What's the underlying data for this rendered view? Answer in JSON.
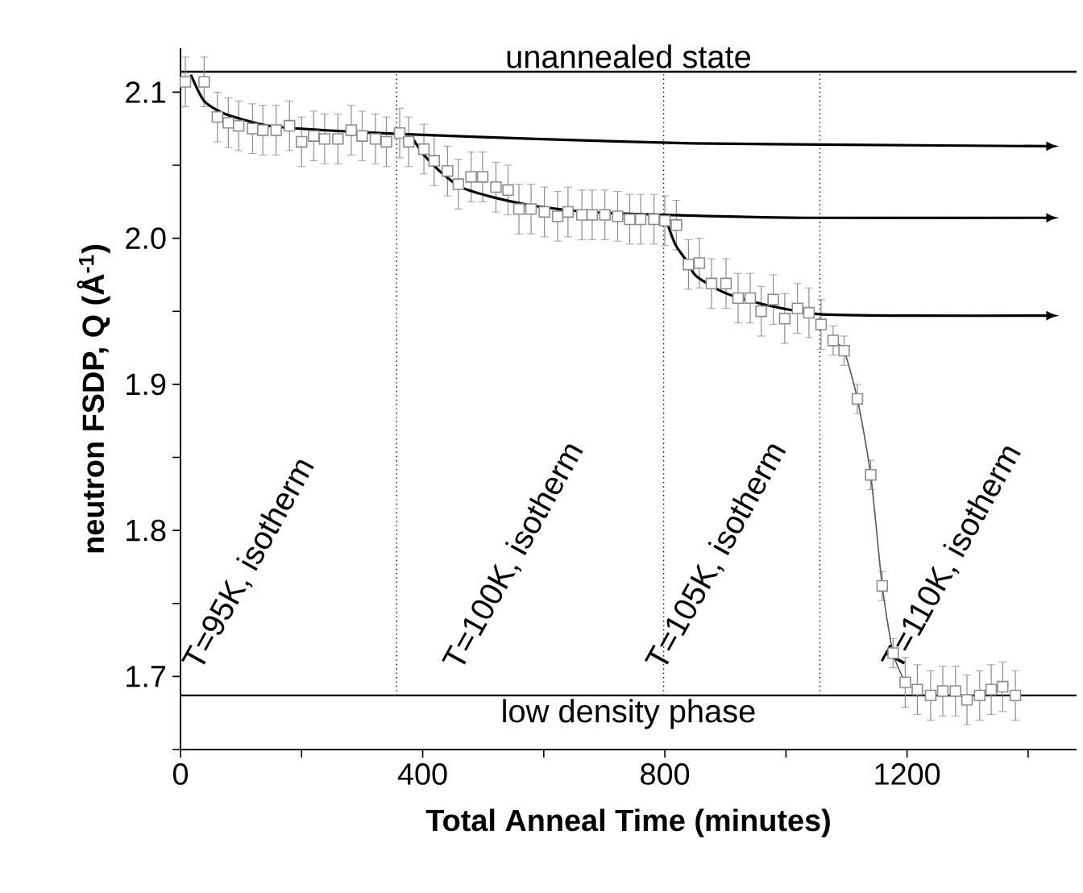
{
  "chart_data": {
    "type": "scatter",
    "xlabel": "Total Anneal Time (minutes)",
    "ylabel": "neutron FSDP, Q (Å$^{-1}$)",
    "xlim": [
      0,
      1480
    ],
    "ylim": [
      1.65,
      2.13
    ],
    "xticks": [
      0,
      {
        "value": 200,
        "label": null
      },
      400,
      {
        "value": 600,
        "label": null
      },
      800,
      {
        "value": 1000,
        "label": null
      },
      1200,
      {
        "value": 1400,
        "label": null
      }
    ],
    "yticks": [
      {
        "value": 1.65,
        "label": null
      },
      1.7,
      {
        "value": 1.75,
        "label": null
      },
      1.8,
      {
        "value": 1.85,
        "label": null
      },
      1.9,
      {
        "value": 1.95,
        "label": null
      },
      {
        "value": 2,
        "label": "2.0"
      },
      {
        "value": 2.05,
        "label": null
      },
      2.1
    ],
    "series": [
      {
        "marker": "square",
        "color": "#8c8c8c",
        "x": [
          8,
          39,
          61,
          79,
          96,
          119,
          136,
          158,
          180,
          200,
          220,
          238,
          260,
          282,
          300,
          322,
          340,
          362,
          377,
          402,
          419,
          441,
          459,
          480,
          499,
          521,
          541,
          559,
          579,
          601,
          623,
          640,
          663,
          680,
          701,
          722,
          742,
          760,
          782,
          800,
          819,
          839,
          857,
          877,
          901,
          921,
          941,
          959,
          979,
          998,
          1019,
          1038,
          1058,
          1078,
          1096,
          1118,
          1140,
          1159,
          1177,
          1197,
          1217,
          1239,
          1259,
          1280,
          1299,
          1320,
          1339,
          1358,
          1379
        ],
        "values": [
          2.107,
          2.107,
          2.083,
          2.079,
          2.077,
          2.075,
          2.074,
          2.074,
          2.077,
          2.066,
          2.07,
          2.068,
          2.068,
          2.074,
          2.07,
          2.068,
          2.066,
          2.072,
          2.066,
          2.061,
          2.053,
          2.046,
          2.037,
          2.042,
          2.042,
          2.035,
          2.033,
          2.02,
          2.02,
          2.018,
          2.015,
          2.018,
          2.016,
          2.016,
          2.016,
          2.015,
          2.013,
          2.013,
          2.013,
          2.012,
          2.009,
          1.982,
          1.983,
          1.969,
          1.969,
          1.959,
          1.959,
          1.95,
          1.958,
          1.945,
          1.952,
          1.949,
          1.941,
          1.93,
          1.923,
          1.89,
          1.838,
          1.762,
          1.716,
          1.696,
          1.691,
          1.687,
          1.69,
          1.69,
          1.684,
          1.687,
          1.691,
          1.693,
          1.687
        ],
        "errors": [
          0.017,
          0.017,
          0.017,
          0.017,
          0.017,
          0.017,
          0.017,
          0.017,
          0.017,
          0.017,
          0.017,
          0.017,
          0.017,
          0.017,
          0.017,
          0.017,
          0.017,
          0.017,
          0.017,
          0.017,
          0.017,
          0.017,
          0.017,
          0.017,
          0.017,
          0.017,
          0.017,
          0.017,
          0.017,
          0.017,
          0.017,
          0.017,
          0.017,
          0.017,
          0.017,
          0.017,
          0.017,
          0.017,
          0.017,
          0.017,
          0.017,
          0.017,
          0.017,
          0.017,
          0.017,
          0.017,
          0.017,
          0.017,
          0.017,
          0.017,
          0.017,
          0.017,
          0.017,
          0.01,
          0.01,
          0.01,
          0.01,
          0.01,
          0.01,
          0.017,
          0.017,
          0.017,
          0.017,
          0.017,
          0.017,
          0.017,
          0.017,
          0.017,
          0.017
        ]
      },
      {
        "type": "line",
        "marker": "none",
        "color": "#555555",
        "x": [
          1078,
          1096,
          1118,
          1140,
          1159,
          1177,
          1197
        ],
        "values": [
          1.93,
          1.923,
          1.89,
          1.838,
          1.762,
          1.716,
          1.696
        ]
      },
      {
        "type": "line",
        "marker": "none",
        "color": "#000000",
        "x": [
          17,
          39,
          74,
          145,
          234,
          384,
          587,
          844,
          1100,
          1430
        ],
        "values": [
          2.112,
          2.094,
          2.085,
          2.077,
          2.074,
          2.071,
          2.068,
          2.065,
          2.064,
          2.063
        ]
      },
      {
        "type": "line",
        "marker": "none",
        "color": "#000000",
        "x": [
          384,
          402,
          428,
          463,
          517,
          587,
          676,
          800,
          1029,
          1430
        ],
        "values": [
          2.068,
          2.057,
          2.046,
          2.035,
          2.028,
          2.022,
          2.018,
          2.016,
          2.014,
          2.014
        ]
      },
      {
        "type": "line",
        "marker": "none",
        "color": "#000000",
        "x": [
          800,
          817,
          835,
          852,
          897,
          941,
          994,
          1056,
          1206,
          1430
        ],
        "values": [
          2.015,
          1.996,
          1.985,
          1.974,
          1.963,
          1.957,
          1.952,
          1.948,
          1.947,
          1.947
        ]
      }
    ],
    "ref_lines": [
      {
        "axis": "y",
        "value": 2.114,
        "label": "unannealed state",
        "color": "#000000",
        "line_style": "solid"
      },
      {
        "axis": "y",
        "value": 1.687,
        "label": "low density phase",
        "color": "#000000",
        "line_style": "solid"
      },
      {
        "axis": "x",
        "value": 357,
        "color": "#000000",
        "line_style": "dotted"
      },
      {
        "axis": "x",
        "value": 798,
        "color": "#000000",
        "line_style": "dotted"
      },
      {
        "axis": "x",
        "value": 1056,
        "color": "#000000",
        "line_style": "dotted"
      }
    ],
    "annotations": [
      "T=95K, isotherm",
      "T=100K, isotherm",
      "T=105K, isotherm",
      "T=110K, isotherm"
    ]
  }
}
